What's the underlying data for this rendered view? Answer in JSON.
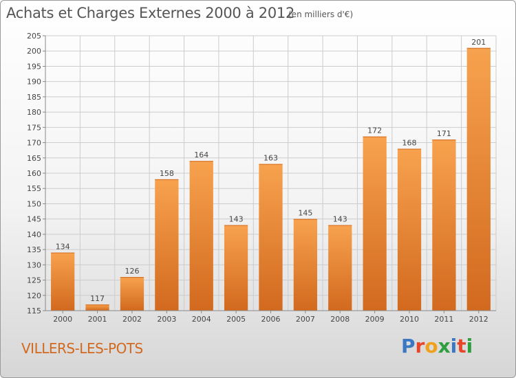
{
  "header": {
    "title": "Achats et Charges Externes 2000 à 2012",
    "unit": "(en milliers d'€)"
  },
  "commune": "VILLERS-LES-POTS",
  "logo": {
    "text": "Proxiti",
    "letter_colors": [
      "#3b78c4",
      "#e8462b",
      "#f0a11c",
      "#2e9e3e",
      "#3b78c4",
      "#e8462b",
      "#2e9e3e"
    ]
  },
  "colors": {
    "bar_light": "#f7a24e",
    "bar_dark": "#d2691e",
    "grid": "#cccccc",
    "axis_text": "#444444",
    "title_text": "#555555",
    "commune_text": "#d2691e"
  },
  "chart_data": {
    "type": "bar",
    "categories": [
      "2000",
      "2001",
      "2002",
      "2003",
      "2004",
      "2005",
      "2006",
      "2007",
      "2008",
      "2009",
      "2010",
      "2011",
      "2012"
    ],
    "values": [
      134,
      117,
      126,
      158,
      164,
      143,
      163,
      145,
      143,
      172,
      168,
      171,
      201
    ],
    "value_labels": [
      "134",
      "117",
      "126",
      "158",
      "164",
      "143",
      "163",
      "145",
      "143",
      "172",
      "168",
      "171",
      "201"
    ],
    "ylim": [
      115,
      205
    ],
    "yticks": [
      115,
      120,
      125,
      130,
      135,
      140,
      145,
      150,
      155,
      160,
      165,
      170,
      175,
      180,
      185,
      190,
      195,
      200,
      205
    ],
    "grid": true,
    "legend": "none"
  }
}
